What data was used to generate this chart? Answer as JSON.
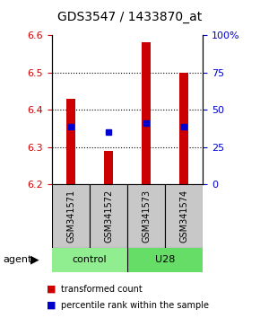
{
  "title": "GDS3547 / 1433870_at",
  "samples": [
    "GSM341571",
    "GSM341572",
    "GSM341573",
    "GSM341574"
  ],
  "bar_values": [
    6.43,
    6.29,
    6.58,
    6.5
  ],
  "bar_base": 6.2,
  "percentile_values": [
    6.355,
    6.34,
    6.365,
    6.355
  ],
  "ylim": [
    6.2,
    6.6
  ],
  "y_ticks_left": [
    6.2,
    6.3,
    6.4,
    6.5,
    6.6
  ],
  "y_ticks_right_labels": [
    "0",
    "25",
    "50",
    "75",
    "100%"
  ],
  "bar_color": "#CC0000",
  "percentile_color": "#0000CC",
  "left_label_color": "#CC0000",
  "right_label_color": "#0000CC",
  "control_color": "#90EE90",
  "u28_color": "#66DD66",
  "sample_box_color": "#C8C8C8"
}
